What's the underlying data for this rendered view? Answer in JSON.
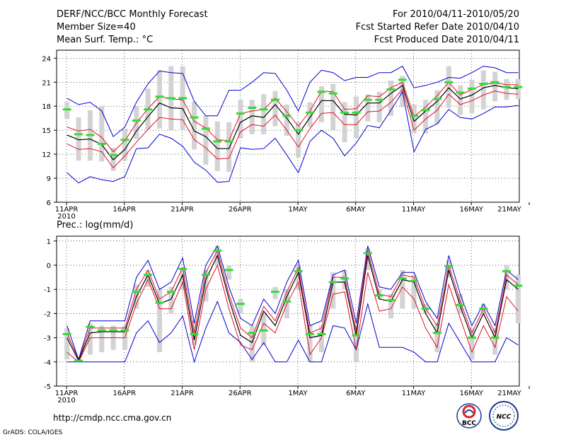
{
  "header": {
    "title_line1": "DERF/NCC/BCC Monthly Forecast",
    "title_line2": "Member Size=40",
    "title_line3": "Mean Surf. Temp.: °C",
    "right_line1": "For 2010/04/11-2010/05/20",
    "right_line2": "Fcst Started Refer Date 2010/04/10",
    "right_line3": "Fcst Produced Date 2010/04/11"
  },
  "footer": {
    "url": "http://cmdp.ncc.cma.gov.cn",
    "grads": "GrADS: COLA/IGES",
    "logo1_text": "BCC",
    "logo2_text": "NCC"
  },
  "colors": {
    "box": "#d3d3d3",
    "median": "#000000",
    "inner": "#e0102a",
    "outer": "#0000d0",
    "obs": "#33dd33"
  },
  "chart_data": [
    {
      "type": "line",
      "title": "Mean Surf. Temp.: °C",
      "ylim": [
        6,
        25
      ],
      "yticks": [
        6,
        9,
        12,
        15,
        18,
        21,
        24
      ],
      "xlim": [
        0,
        39
      ],
      "xticks": [
        {
          "day": 0,
          "label": "11APR",
          "sub": "2010"
        },
        {
          "day": 5,
          "label": "16APR"
        },
        {
          "day": 10,
          "label": "21APR"
        },
        {
          "day": 15,
          "label": "26APR"
        },
        {
          "day": 20,
          "label": "1MAY"
        },
        {
          "day": 25,
          "label": "6MAY"
        },
        {
          "day": 30,
          "label": "11MAY"
        },
        {
          "day": 35,
          "label": "16MAY"
        },
        {
          "day": 40,
          "label": "21MAY"
        }
      ],
      "series": [
        {
          "name": "max",
          "role": "outer",
          "values": [
            9.7,
            8.4,
            9.2,
            8.8,
            8.6,
            9.2,
            12.7,
            12.8,
            14.5,
            14.0,
            13.0,
            11.0,
            10.0,
            8.5,
            8.6,
            12.8,
            12.6,
            12.7,
            14.0,
            11.9,
            9.7,
            13.6,
            15.0,
            14.0,
            11.8,
            13.4,
            15.6,
            15.3,
            17.5,
            19.8,
            12.3,
            15.1,
            15.8,
            17.6,
            16.6,
            16.4,
            17.1,
            17.9,
            17.9,
            18.1
          ]
        },
        {
          "name": "p25",
          "role": "inner",
          "values": [
            13.3,
            12.6,
            12.7,
            12.3,
            10.3,
            11.8,
            13.5,
            15.1,
            16.6,
            16.4,
            16.3,
            13.8,
            12.8,
            11.4,
            11.5,
            14.8,
            15.7,
            15.5,
            16.9,
            15.0,
            12.9,
            15.2,
            17.1,
            17.2,
            15.7,
            15.7,
            17.3,
            17.4,
            18.5,
            20.1,
            15.0,
            16.4,
            17.5,
            19.5,
            18.2,
            18.7,
            19.4,
            19.9,
            19.6,
            19.5
          ]
        },
        {
          "name": "median",
          "role": "median",
          "values": [
            14.4,
            13.8,
            13.9,
            13.2,
            11.3,
            12.6,
            14.9,
            16.7,
            18.4,
            17.8,
            17.7,
            14.9,
            14.2,
            12.7,
            12.7,
            16.0,
            16.8,
            16.6,
            18.2,
            16.5,
            14.5,
            16.6,
            18.7,
            18.7,
            17.0,
            16.9,
            18.4,
            18.4,
            19.6,
            20.6,
            16.1,
            17.4,
            18.6,
            20.3,
            18.9,
            19.4,
            20.3,
            20.6,
            20.3,
            20.2
          ]
        },
        {
          "name": "p75",
          "role": "inner",
          "values": [
            15.4,
            14.9,
            15.1,
            14.1,
            12.3,
            13.7,
            15.9,
            17.7,
            19.2,
            18.9,
            18.8,
            16.1,
            15.3,
            13.8,
            13.7,
            17.1,
            17.4,
            17.6,
            19.0,
            17.3,
            15.5,
            17.4,
            19.9,
            19.8,
            17.6,
            17.7,
            19.3,
            19.2,
            20.3,
            21.0,
            16.7,
            17.9,
            19.3,
            21.0,
            19.4,
            20.1,
            20.7,
            20.9,
            20.7,
            20.7
          ]
        },
        {
          "name": "min",
          "role": "outer",
          "values": [
            19.0,
            18.2,
            18.5,
            17.4,
            14.2,
            15.4,
            18.5,
            20.8,
            22.4,
            22.2,
            22.1,
            18.6,
            16.8,
            16.8,
            20.0,
            20.0,
            21.0,
            22.2,
            22.1,
            20.0,
            17.4,
            21.0,
            22.5,
            22.2,
            21.2,
            21.6,
            21.6,
            22.2,
            22.2,
            23.0,
            20.3,
            20.6,
            21.0,
            21.6,
            21.5,
            22.2,
            23.0,
            22.8,
            22.2,
            22.2
          ]
        },
        {
          "name": "observed",
          "role": "obs",
          "values": [
            17.6,
            14.5,
            14.4,
            13.3,
            11.9,
            13.8,
            16.2,
            17.6,
            19.2,
            19.0,
            19.0,
            16.6,
            15.2,
            13.6,
            13.6,
            17.1,
            17.8,
            17.6,
            18.8,
            16.8,
            15.0,
            17.2,
            19.8,
            19.6,
            17.2,
            17.2,
            18.8,
            18.8,
            20.1,
            21.3,
            16.8,
            17.5,
            18.9,
            21.0,
            19.7,
            20.2,
            20.8,
            21.0,
            20.4,
            20.4
          ]
        }
      ],
      "box_low": [
        16.4,
        11.2,
        11.2,
        11.1,
        9.9,
        11.2,
        13.9,
        15.1,
        15.2,
        15.0,
        15.1,
        12.6,
        10.7,
        9.9,
        9.8,
        14.0,
        14.5,
        14.5,
        15.5,
        14.3,
        11.6,
        15.4,
        16.0,
        15.0,
        13.5,
        14.0,
        16.1,
        16.0,
        16.8,
        17.9,
        14.6,
        14.6,
        15.8,
        17.8,
        16.9,
        17.1,
        17.6,
        18.6,
        18.8,
        18.9
      ],
      "box_high": [
        18.5,
        16.6,
        17.5,
        18.0,
        12.8,
        15.2,
        18.0,
        20.2,
        22.5,
        23.0,
        23.0,
        18.6,
        16.8,
        16.1,
        16.0,
        18.8,
        18.8,
        19.5,
        19.9,
        18.2,
        16.0,
        18.5,
        20.5,
        20.8,
        18.5,
        19.2,
        19.5,
        19.8,
        21.2,
        21.8,
        18.2,
        18.8,
        20.0,
        23.0,
        20.6,
        21.3,
        22.5,
        22.3,
        21.4,
        21.4
      ]
    },
    {
      "type": "line",
      "title": "Prec.: log(mm/d)",
      "ylim": [
        -5,
        1.2
      ],
      "yticks": [
        -5,
        -4,
        -3,
        -2,
        -1,
        0,
        1
      ],
      "xlim": [
        0,
        39
      ],
      "xticks": [
        {
          "day": 0,
          "label": "11APR",
          "sub": "2010"
        },
        {
          "day": 5,
          "label": "16APR"
        },
        {
          "day": 10,
          "label": "21APR"
        },
        {
          "day": 15,
          "label": "26APR"
        },
        {
          "day": 20,
          "label": "1MAY"
        },
        {
          "day": 25,
          "label": "6MAY"
        },
        {
          "day": 30,
          "label": "11MAY"
        },
        {
          "day": 35,
          "label": "16MAY"
        },
        {
          "day": 40,
          "label": "21MAY"
        }
      ],
      "series": [
        {
          "name": "min",
          "role": "outer",
          "values": [
            -4.0,
            -4.0,
            -4.0,
            -4.0,
            -4.0,
            -4.0,
            -2.8,
            -2.3,
            -3.2,
            -2.8,
            -2.1,
            -4.0,
            -2.6,
            -1.5,
            -2.8,
            -3.2,
            -3.9,
            -3.2,
            -4.0,
            -4.0,
            -3.1,
            -4.0,
            -4.0,
            -2.5,
            -2.6,
            -3.5,
            -1.6,
            -3.4,
            -3.4,
            -3.4,
            -3.6,
            -4.0,
            -4.0,
            -2.4,
            -3.2,
            -4.0,
            -4.0,
            -4.0,
            -3.0,
            -3.3
          ]
        },
        {
          "name": "p25",
          "role": "inner",
          "values": [
            -3.6,
            -4.0,
            -3.0,
            -3.0,
            -3.0,
            -3.0,
            -1.6,
            -0.6,
            -1.8,
            -1.8,
            -0.7,
            -3.5,
            -1.0,
            0.0,
            -1.8,
            -3.3,
            -3.5,
            -2.4,
            -2.8,
            -1.6,
            -0.7,
            -3.7,
            -3.0,
            -1.2,
            -1.1,
            -3.5,
            -0.3,
            -1.9,
            -1.8,
            -0.9,
            -1.4,
            -2.6,
            -3.4,
            -0.8,
            -2.2,
            -3.6,
            -2.5,
            -3.4,
            -1.3,
            -1.9
          ]
        },
        {
          "name": "median",
          "role": "median",
          "values": [
            -3.0,
            -3.95,
            -2.8,
            -2.75,
            -2.75,
            -2.75,
            -1.3,
            -0.4,
            -1.6,
            -1.4,
            -0.4,
            -3.1,
            -0.6,
            0.4,
            -1.4,
            -2.9,
            -3.2,
            -1.9,
            -2.5,
            -1.3,
            -0.3,
            -3.0,
            -2.9,
            -0.7,
            -0.7,
            -2.9,
            0.4,
            -1.4,
            -1.5,
            -0.6,
            -0.7,
            -2.0,
            -2.8,
            -0.2,
            -1.7,
            -3.0,
            -2.0,
            -3.0,
            -0.6,
            -1.0
          ]
        },
        {
          "name": "p75",
          "role": "inner",
          "values": [
            -2.8,
            -3.9,
            -2.6,
            -2.6,
            -2.6,
            -2.6,
            -1.0,
            -0.2,
            -1.4,
            -1.1,
            -0.1,
            -2.8,
            -0.3,
            0.6,
            -1.2,
            -2.6,
            -3.0,
            -1.7,
            -2.3,
            -1.1,
            -0.1,
            -2.8,
            -2.6,
            -0.5,
            -0.5,
            -2.7,
            0.6,
            -1.2,
            -1.3,
            -0.4,
            -0.5,
            -1.8,
            -2.5,
            0.0,
            -1.5,
            -2.8,
            -1.8,
            -2.8,
            -0.4,
            -0.8
          ]
        },
        {
          "name": "max",
          "role": "outer",
          "values": [
            -2.5,
            -3.9,
            -2.3,
            -2.3,
            -2.3,
            -2.3,
            -0.5,
            0.2,
            -1.0,
            -0.7,
            0.3,
            -2.4,
            0.0,
            0.8,
            -0.9,
            -2.2,
            -2.5,
            -1.4,
            -2.0,
            -0.7,
            0.2,
            -2.5,
            -2.3,
            -0.4,
            -0.2,
            -2.4,
            0.8,
            -0.9,
            -1.0,
            -0.3,
            -0.3,
            -1.5,
            -2.2,
            0.4,
            -1.2,
            -2.5,
            -1.6,
            -2.5,
            -0.2,
            -0.6
          ]
        },
        {
          "name": "observed",
          "role": "obs",
          "values": [
            -2.85,
            -3.95,
            -2.55,
            -2.7,
            -2.7,
            -2.7,
            -1.1,
            -0.4,
            -1.55,
            -1.1,
            -0.15,
            -2.85,
            -0.4,
            0.6,
            -0.2,
            -1.6,
            -2.8,
            -2.7,
            -1.1,
            -1.5,
            -0.25,
            -2.85,
            -2.85,
            -0.7,
            -0.55,
            -2.9,
            0.5,
            -1.25,
            -1.45,
            -0.55,
            -0.65,
            -1.8,
            -2.8,
            -0.05,
            -1.65,
            -3.0,
            -1.8,
            -3.0,
            -0.25,
            -0.85
          ]
        }
      ],
      "box_low": [
        -3.9,
        -4.0,
        -3.7,
        -3.6,
        -3.5,
        -3.5,
        -1.8,
        -0.9,
        -3.6,
        -2.0,
        -1.0,
        -3.3,
        -1.5,
        0.0,
        -0.6,
        -2.0,
        -4.0,
        -3.3,
        -1.4,
        -2.2,
        -1.0,
        -4.0,
        -3.6,
        -1.8,
        -1.0,
        -4.0,
        -0.2,
        -1.4,
        -2.2,
        -1.8,
        -1.8,
        -2.0,
        -3.6,
        -0.5,
        -2.0,
        -3.9,
        -2.0,
        -3.7,
        -1.0,
        -2.4
      ],
      "box_high": [
        -2.6,
        -3.9,
        -2.4,
        -2.5,
        -2.5,
        -2.5,
        -0.8,
        -0.2,
        -1.0,
        -0.9,
        -0.1,
        -2.3,
        -0.2,
        0.8,
        0.0,
        -1.4,
        -2.5,
        -2.0,
        -0.9,
        -1.0,
        0.0,
        -2.5,
        -2.5,
        -0.3,
        -0.2,
        -2.5,
        0.7,
        -1.0,
        -1.2,
        -0.2,
        -0.4,
        -1.6,
        -2.4,
        0.2,
        -1.2,
        -2.6,
        -1.6,
        -2.6,
        0.0,
        -0.4
      ]
    }
  ]
}
